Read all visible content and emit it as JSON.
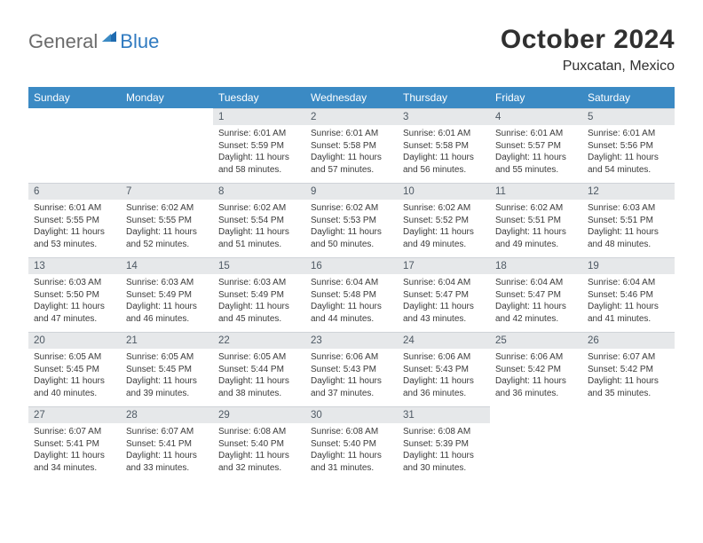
{
  "logo": {
    "word1": "General",
    "word2": "Blue"
  },
  "title": "October 2024",
  "location": "Puxcatan, Mexico",
  "colors": {
    "header_bg": "#3b8ac4",
    "header_text": "#ffffff",
    "daynum_bg": "#e6e8ea",
    "daynum_text": "#4e5964",
    "body_text": "#3a3a3a",
    "logo_gray": "#6b6b6b",
    "logo_blue": "#2f7ac0",
    "page_bg": "#ffffff"
  },
  "weekdays": [
    "Sunday",
    "Monday",
    "Tuesday",
    "Wednesday",
    "Thursday",
    "Friday",
    "Saturday"
  ],
  "grid": [
    [
      null,
      null,
      {
        "n": "1",
        "sr": "Sunrise: 6:01 AM",
        "ss": "Sunset: 5:59 PM",
        "d1": "Daylight: 11 hours",
        "d2": "and 58 minutes."
      },
      {
        "n": "2",
        "sr": "Sunrise: 6:01 AM",
        "ss": "Sunset: 5:58 PM",
        "d1": "Daylight: 11 hours",
        "d2": "and 57 minutes."
      },
      {
        "n": "3",
        "sr": "Sunrise: 6:01 AM",
        "ss": "Sunset: 5:58 PM",
        "d1": "Daylight: 11 hours",
        "d2": "and 56 minutes."
      },
      {
        "n": "4",
        "sr": "Sunrise: 6:01 AM",
        "ss": "Sunset: 5:57 PM",
        "d1": "Daylight: 11 hours",
        "d2": "and 55 minutes."
      },
      {
        "n": "5",
        "sr": "Sunrise: 6:01 AM",
        "ss": "Sunset: 5:56 PM",
        "d1": "Daylight: 11 hours",
        "d2": "and 54 minutes."
      }
    ],
    [
      {
        "n": "6",
        "sr": "Sunrise: 6:01 AM",
        "ss": "Sunset: 5:55 PM",
        "d1": "Daylight: 11 hours",
        "d2": "and 53 minutes."
      },
      {
        "n": "7",
        "sr": "Sunrise: 6:02 AM",
        "ss": "Sunset: 5:55 PM",
        "d1": "Daylight: 11 hours",
        "d2": "and 52 minutes."
      },
      {
        "n": "8",
        "sr": "Sunrise: 6:02 AM",
        "ss": "Sunset: 5:54 PM",
        "d1": "Daylight: 11 hours",
        "d2": "and 51 minutes."
      },
      {
        "n": "9",
        "sr": "Sunrise: 6:02 AM",
        "ss": "Sunset: 5:53 PM",
        "d1": "Daylight: 11 hours",
        "d2": "and 50 minutes."
      },
      {
        "n": "10",
        "sr": "Sunrise: 6:02 AM",
        "ss": "Sunset: 5:52 PM",
        "d1": "Daylight: 11 hours",
        "d2": "and 49 minutes."
      },
      {
        "n": "11",
        "sr": "Sunrise: 6:02 AM",
        "ss": "Sunset: 5:51 PM",
        "d1": "Daylight: 11 hours",
        "d2": "and 49 minutes."
      },
      {
        "n": "12",
        "sr": "Sunrise: 6:03 AM",
        "ss": "Sunset: 5:51 PM",
        "d1": "Daylight: 11 hours",
        "d2": "and 48 minutes."
      }
    ],
    [
      {
        "n": "13",
        "sr": "Sunrise: 6:03 AM",
        "ss": "Sunset: 5:50 PM",
        "d1": "Daylight: 11 hours",
        "d2": "and 47 minutes."
      },
      {
        "n": "14",
        "sr": "Sunrise: 6:03 AM",
        "ss": "Sunset: 5:49 PM",
        "d1": "Daylight: 11 hours",
        "d2": "and 46 minutes."
      },
      {
        "n": "15",
        "sr": "Sunrise: 6:03 AM",
        "ss": "Sunset: 5:49 PM",
        "d1": "Daylight: 11 hours",
        "d2": "and 45 minutes."
      },
      {
        "n": "16",
        "sr": "Sunrise: 6:04 AM",
        "ss": "Sunset: 5:48 PM",
        "d1": "Daylight: 11 hours",
        "d2": "and 44 minutes."
      },
      {
        "n": "17",
        "sr": "Sunrise: 6:04 AM",
        "ss": "Sunset: 5:47 PM",
        "d1": "Daylight: 11 hours",
        "d2": "and 43 minutes."
      },
      {
        "n": "18",
        "sr": "Sunrise: 6:04 AM",
        "ss": "Sunset: 5:47 PM",
        "d1": "Daylight: 11 hours",
        "d2": "and 42 minutes."
      },
      {
        "n": "19",
        "sr": "Sunrise: 6:04 AM",
        "ss": "Sunset: 5:46 PM",
        "d1": "Daylight: 11 hours",
        "d2": "and 41 minutes."
      }
    ],
    [
      {
        "n": "20",
        "sr": "Sunrise: 6:05 AM",
        "ss": "Sunset: 5:45 PM",
        "d1": "Daylight: 11 hours",
        "d2": "and 40 minutes."
      },
      {
        "n": "21",
        "sr": "Sunrise: 6:05 AM",
        "ss": "Sunset: 5:45 PM",
        "d1": "Daylight: 11 hours",
        "d2": "and 39 minutes."
      },
      {
        "n": "22",
        "sr": "Sunrise: 6:05 AM",
        "ss": "Sunset: 5:44 PM",
        "d1": "Daylight: 11 hours",
        "d2": "and 38 minutes."
      },
      {
        "n": "23",
        "sr": "Sunrise: 6:06 AM",
        "ss": "Sunset: 5:43 PM",
        "d1": "Daylight: 11 hours",
        "d2": "and 37 minutes."
      },
      {
        "n": "24",
        "sr": "Sunrise: 6:06 AM",
        "ss": "Sunset: 5:43 PM",
        "d1": "Daylight: 11 hours",
        "d2": "and 36 minutes."
      },
      {
        "n": "25",
        "sr": "Sunrise: 6:06 AM",
        "ss": "Sunset: 5:42 PM",
        "d1": "Daylight: 11 hours",
        "d2": "and 36 minutes."
      },
      {
        "n": "26",
        "sr": "Sunrise: 6:07 AM",
        "ss": "Sunset: 5:42 PM",
        "d1": "Daylight: 11 hours",
        "d2": "and 35 minutes."
      }
    ],
    [
      {
        "n": "27",
        "sr": "Sunrise: 6:07 AM",
        "ss": "Sunset: 5:41 PM",
        "d1": "Daylight: 11 hours",
        "d2": "and 34 minutes."
      },
      {
        "n": "28",
        "sr": "Sunrise: 6:07 AM",
        "ss": "Sunset: 5:41 PM",
        "d1": "Daylight: 11 hours",
        "d2": "and 33 minutes."
      },
      {
        "n": "29",
        "sr": "Sunrise: 6:08 AM",
        "ss": "Sunset: 5:40 PM",
        "d1": "Daylight: 11 hours",
        "d2": "and 32 minutes."
      },
      {
        "n": "30",
        "sr": "Sunrise: 6:08 AM",
        "ss": "Sunset: 5:40 PM",
        "d1": "Daylight: 11 hours",
        "d2": "and 31 minutes."
      },
      {
        "n": "31",
        "sr": "Sunrise: 6:08 AM",
        "ss": "Sunset: 5:39 PM",
        "d1": "Daylight: 11 hours",
        "d2": "and 30 minutes."
      },
      null,
      null
    ]
  ]
}
